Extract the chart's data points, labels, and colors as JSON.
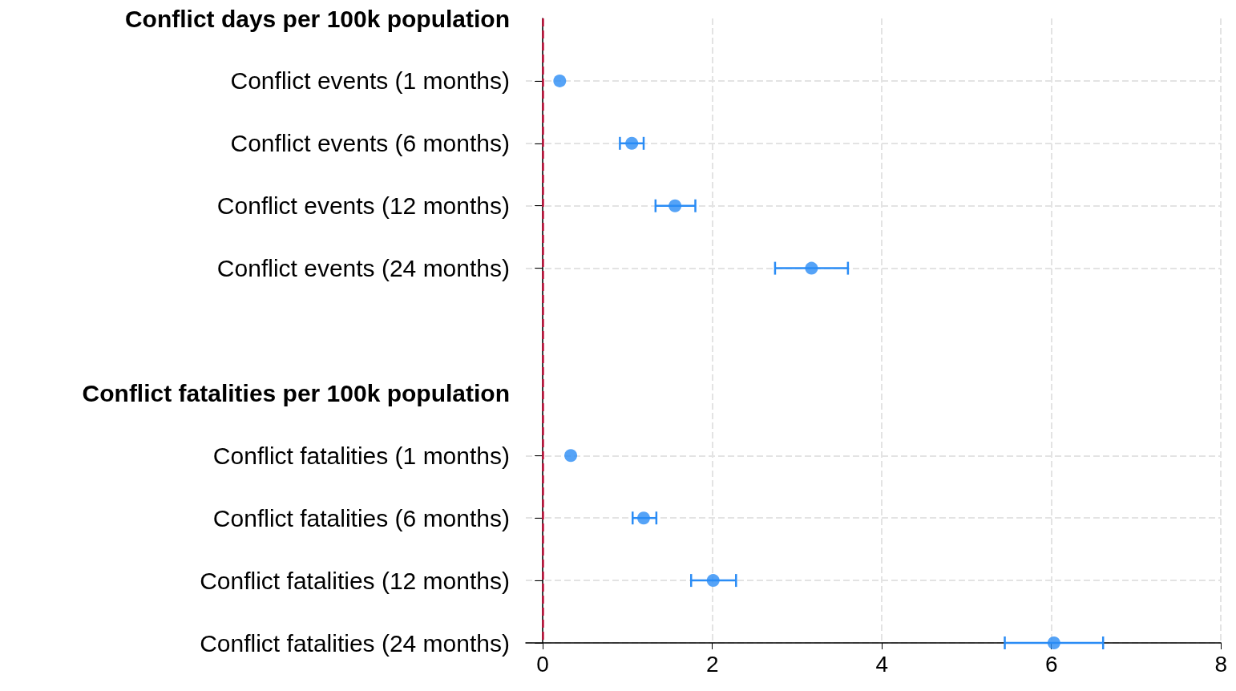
{
  "chart_data": {
    "type": "scatter",
    "orientation": "horizontal",
    "categories": [
      "Conflict days per 100k population",
      "Conflict events (1 months)",
      "Conflict events (6 months)",
      "Conflict events (12 months)",
      "Conflict events (24 months)",
      null,
      "Conflict fatalities per 100k population",
      "Conflict fatalities (1 months)",
      "Conflict fatalities (6 months)",
      "Conflict fatalities (12 months)",
      "Conflict fatalities (24 months)"
    ],
    "series": [
      {
        "color": "#2a8cf5",
        "values": [
          null,
          0.2,
          1.05,
          1.56,
          3.17,
          null,
          null,
          0.33,
          1.19,
          2.01,
          6.03
        ],
        "errors": [
          null,
          null,
          [
            0.91,
            1.19
          ],
          [
            1.33,
            1.8
          ],
          [
            2.74,
            3.6
          ],
          null,
          null,
          null,
          [
            1.06,
            1.34
          ],
          [
            1.75,
            2.28
          ],
          [
            5.45,
            6.61
          ]
        ]
      }
    ],
    "xlim": [
      -0.2,
      8
    ],
    "xticks": [
      0,
      2,
      4,
      6,
      8
    ],
    "grid": true,
    "marker": "circle",
    "ref_lines": [
      {
        "axis": "x",
        "value": 0,
        "color": "#c0143c",
        "line_style": "dashed"
      }
    ]
  }
}
